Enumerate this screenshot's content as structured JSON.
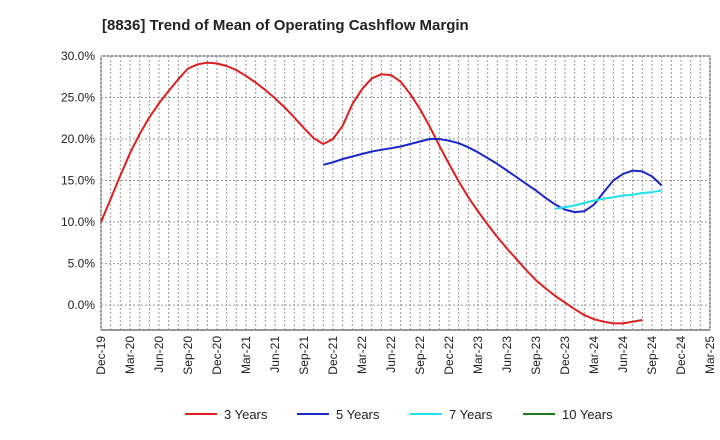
{
  "chart_data": {
    "type": "line",
    "title": "[8836]  Trend of Mean of Operating Cashflow Margin",
    "xlabel": "",
    "ylabel": "",
    "ylim": [
      -3,
      30
    ],
    "yticks": [
      30,
      25,
      20,
      15,
      10,
      5,
      0
    ],
    "ytick_labels": [
      "30.0%",
      "25.0%",
      "20.0%",
      "15.0%",
      "10.0%",
      "5.0%",
      "0.0%"
    ],
    "x_start": "Dec-19",
    "x_end": "Mar-25",
    "x_ticks": [
      "Dec-19",
      "Mar-20",
      "Jun-20",
      "Sep-20",
      "Dec-20",
      "Mar-21",
      "Jun-21",
      "Sep-21",
      "Dec-21",
      "Mar-22",
      "Jun-22",
      "Sep-22",
      "Dec-22",
      "Mar-23",
      "Jun-23",
      "Sep-23",
      "Dec-23",
      "Mar-24",
      "Jun-24",
      "Sep-24",
      "Dec-24",
      "Mar-25"
    ],
    "grid": true,
    "legend_position": "bottom",
    "series": [
      {
        "name": "3 Years",
        "color": "#dd1f1f",
        "points": [
          [
            "Dec-19",
            10.0
          ],
          [
            "Jan-20",
            12.8
          ],
          [
            "Feb-20",
            15.6
          ],
          [
            "Mar-20",
            18.3
          ],
          [
            "Apr-20",
            20.6
          ],
          [
            "May-20",
            22.6
          ],
          [
            "Jun-20",
            24.3
          ],
          [
            "Jul-20",
            25.8
          ],
          [
            "Aug-20",
            27.2
          ],
          [
            "Sep-20",
            28.5
          ],
          [
            "Oct-20",
            29.0
          ],
          [
            "Nov-20",
            29.2
          ],
          [
            "Dec-20",
            29.1
          ],
          [
            "Jan-21",
            28.8
          ],
          [
            "Feb-21",
            28.3
          ],
          [
            "Mar-21",
            27.6
          ],
          [
            "Apr-21",
            26.8
          ],
          [
            "May-21",
            25.9
          ],
          [
            "Jun-21",
            24.9
          ],
          [
            "Jul-21",
            23.8
          ],
          [
            "Aug-21",
            22.6
          ],
          [
            "Sep-21",
            21.3
          ],
          [
            "Oct-21",
            20.1
          ],
          [
            "Nov-21",
            19.4
          ],
          [
            "Dec-21",
            20.0
          ],
          [
            "Jan-22",
            21.6
          ],
          [
            "Feb-22",
            24.2
          ],
          [
            "Mar-22",
            26.0
          ],
          [
            "Apr-22",
            27.3
          ],
          [
            "May-22",
            27.8
          ],
          [
            "Jun-22",
            27.7
          ],
          [
            "Jul-22",
            26.9
          ],
          [
            "Aug-22",
            25.4
          ],
          [
            "Sep-22",
            23.6
          ],
          [
            "Oct-22",
            21.5
          ],
          [
            "Nov-22",
            19.2
          ],
          [
            "Dec-22",
            17.0
          ],
          [
            "Jan-23",
            14.9
          ],
          [
            "Feb-23",
            13.0
          ],
          [
            "Mar-23",
            11.3
          ],
          [
            "Apr-23",
            9.7
          ],
          [
            "May-23",
            8.2
          ],
          [
            "Jun-23",
            6.8
          ],
          [
            "Jul-23",
            5.5
          ],
          [
            "Aug-23",
            4.2
          ],
          [
            "Sep-23",
            3.0
          ],
          [
            "Oct-23",
            2.0
          ],
          [
            "Nov-23",
            1.1
          ],
          [
            "Dec-23",
            0.3
          ],
          [
            "Jan-24",
            -0.5
          ],
          [
            "Feb-24",
            -1.2
          ],
          [
            "Mar-24",
            -1.7
          ],
          [
            "Apr-24",
            -2.0
          ],
          [
            "May-24",
            -2.2
          ],
          [
            "Jun-24",
            -2.2
          ],
          [
            "Jul-24",
            -2.0
          ],
          [
            "Aug-24",
            -1.8
          ]
        ]
      },
      {
        "name": "5 Years",
        "color": "#1a28c8",
        "points": [
          [
            "Nov-21",
            16.9
          ],
          [
            "Dec-21",
            17.2
          ],
          [
            "Jan-22",
            17.6
          ],
          [
            "Feb-22",
            17.9
          ],
          [
            "Mar-22",
            18.2
          ],
          [
            "Apr-22",
            18.5
          ],
          [
            "May-22",
            18.7
          ],
          [
            "Jun-22",
            18.9
          ],
          [
            "Jul-22",
            19.1
          ],
          [
            "Aug-22",
            19.4
          ],
          [
            "Sep-22",
            19.7
          ],
          [
            "Oct-22",
            20.0
          ],
          [
            "Nov-22",
            20.0
          ],
          [
            "Dec-22",
            19.8
          ],
          [
            "Jan-23",
            19.5
          ],
          [
            "Feb-23",
            19.0
          ],
          [
            "Mar-23",
            18.4
          ],
          [
            "Apr-23",
            17.7
          ],
          [
            "May-23",
            17.0
          ],
          [
            "Jun-23",
            16.2
          ],
          [
            "Jul-23",
            15.4
          ],
          [
            "Aug-23",
            14.6
          ],
          [
            "Sep-23",
            13.8
          ],
          [
            "Oct-23",
            12.9
          ],
          [
            "Nov-23",
            12.1
          ],
          [
            "Dec-23",
            11.5
          ],
          [
            "Jan-24",
            11.2
          ],
          [
            "Feb-24",
            11.3
          ],
          [
            "Mar-24",
            12.1
          ],
          [
            "Apr-24",
            13.6
          ],
          [
            "May-24",
            15.0
          ],
          [
            "Jun-24",
            15.8
          ],
          [
            "Jul-24",
            16.2
          ],
          [
            "Aug-24",
            16.1
          ],
          [
            "Sep-24",
            15.5
          ],
          [
            "Oct-24",
            14.4
          ]
        ]
      },
      {
        "name": "7 Years",
        "color": "#1fe0f0",
        "points": [
          [
            "Nov-23",
            11.6
          ],
          [
            "Dec-23",
            11.8
          ],
          [
            "Jan-24",
            12.0
          ],
          [
            "Feb-24",
            12.3
          ],
          [
            "Mar-24",
            12.6
          ],
          [
            "Apr-24",
            12.8
          ],
          [
            "May-24",
            13.0
          ],
          [
            "Jun-24",
            13.2
          ],
          [
            "Jul-24",
            13.3
          ],
          [
            "Aug-24",
            13.5
          ],
          [
            "Sep-24",
            13.6
          ],
          [
            "Oct-24",
            13.8
          ]
        ]
      },
      {
        "name": "10 Years",
        "color": "#1b7d1b",
        "points": []
      }
    ]
  }
}
